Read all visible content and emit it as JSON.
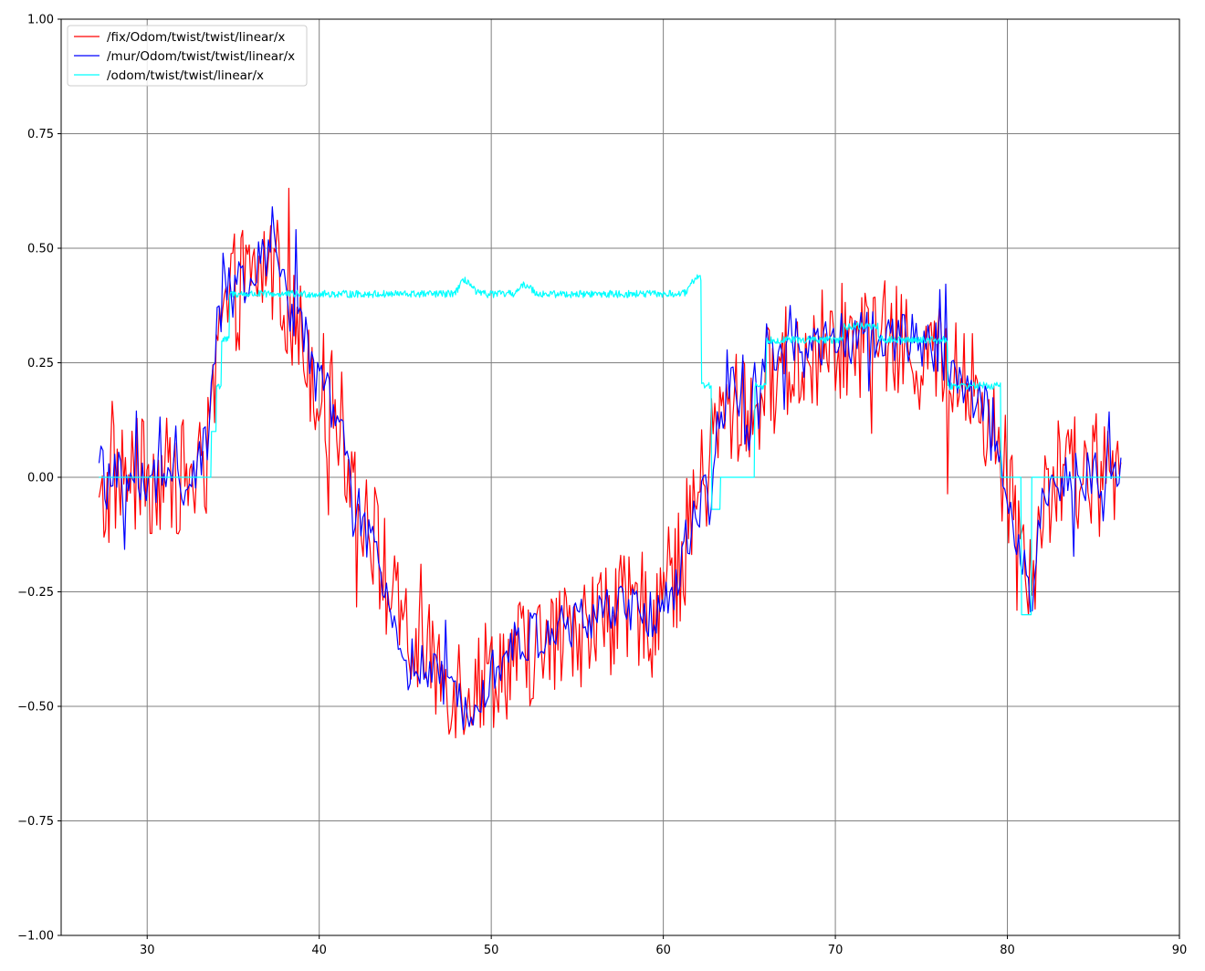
{
  "chart_data": {
    "type": "line",
    "xlim": [
      25,
      90
    ],
    "ylim": [
      -1.0,
      1.0
    ],
    "grid": true,
    "legend_position": "top-left",
    "xticks": [
      30,
      40,
      50,
      60,
      70,
      80,
      90
    ],
    "xtick_labels": [
      "30",
      "40",
      "50",
      "60",
      "70",
      "80",
      "90"
    ],
    "yticks": [
      -1.0,
      -0.75,
      -0.5,
      -0.25,
      0.0,
      0.25,
      0.5,
      0.75,
      1.0
    ],
    "ytick_labels": [
      "−1.00",
      "−0.75",
      "−0.50",
      "−0.25",
      "0.00",
      "0.25",
      "0.50",
      "0.75",
      "1.00"
    ],
    "series": [
      {
        "name": "/fix/Odom/twist/twist/linear/x",
        "color": "#ff0000",
        "anchors_x": [
          27.2,
          28,
          29,
          30,
          31,
          32,
          33,
          33.6,
          34.2,
          35,
          36,
          37,
          37.5,
          38,
          39,
          40,
          41,
          42,
          43,
          44,
          45,
          46,
          47,
          48,
          49,
          50,
          51,
          52,
          53,
          54,
          55,
          56,
          57,
          58,
          59,
          60,
          61,
          61.8,
          62.5,
          63,
          64,
          65,
          66,
          67,
          68,
          69,
          70,
          71,
          72,
          73,
          74,
          75,
          76,
          77,
          78,
          79,
          79.7,
          80.5,
          81,
          81.5,
          82,
          83,
          84,
          85,
          86,
          86.6
        ],
        "anchors_y": [
          -0.1,
          0.0,
          0.0,
          0.0,
          0.0,
          0.0,
          0.0,
          0.05,
          0.3,
          0.4,
          0.42,
          0.47,
          0.45,
          0.38,
          0.3,
          0.2,
          0.15,
          0.0,
          -0.1,
          -0.25,
          -0.35,
          -0.4,
          -0.42,
          -0.45,
          -0.45,
          -0.42,
          -0.4,
          -0.38,
          -0.38,
          -0.36,
          -0.33,
          -0.32,
          -0.3,
          -0.3,
          -0.28,
          -0.25,
          -0.2,
          -0.05,
          0.0,
          0.1,
          0.15,
          0.15,
          0.2,
          0.25,
          0.25,
          0.28,
          0.3,
          0.3,
          0.3,
          0.3,
          0.28,
          0.27,
          0.25,
          0.22,
          0.18,
          0.12,
          0.0,
          -0.05,
          -0.15,
          -0.2,
          -0.05,
          0.0,
          0.0,
          0.0,
          0.0,
          0.0
        ],
        "noise_amp": 0.13,
        "num_points": 620
      },
      {
        "name": "/mur/Odom/twist/twist/linear/x",
        "color": "#0000ff",
        "anchors_x": [
          27.2,
          27.6,
          28,
          29,
          30,
          31,
          32,
          33,
          33.6,
          34.3,
          35,
          36,
          37,
          37.3,
          38,
          39,
          40,
          41,
          42,
          43,
          44,
          45,
          46,
          47,
          48,
          49,
          50,
          51,
          52,
          53,
          54,
          55,
          56,
          57,
          58,
          59,
          60,
          61,
          62,
          62.7,
          63.3,
          64,
          65,
          65.3,
          66,
          67,
          68,
          69,
          70,
          71,
          72,
          73,
          74,
          75,
          76,
          77,
          78,
          79,
          79.6,
          80,
          81,
          81.3,
          82,
          83,
          84,
          85,
          86,
          86.6
        ],
        "anchors_y": [
          0.08,
          -0.05,
          0.0,
          0.0,
          -0.02,
          0.0,
          0.0,
          0.02,
          0.08,
          0.5,
          0.38,
          0.42,
          0.5,
          0.55,
          0.4,
          0.32,
          0.2,
          0.15,
          -0.05,
          -0.15,
          -0.28,
          -0.38,
          -0.42,
          -0.45,
          -0.5,
          -0.48,
          -0.42,
          -0.38,
          -0.35,
          -0.35,
          -0.33,
          -0.32,
          -0.3,
          -0.28,
          -0.3,
          -0.3,
          -0.28,
          -0.22,
          -0.05,
          -0.05,
          0.15,
          0.2,
          0.1,
          0.2,
          0.28,
          0.28,
          0.25,
          0.28,
          0.3,
          0.3,
          0.32,
          0.3,
          0.3,
          0.3,
          0.28,
          0.22,
          0.18,
          0.15,
          0.05,
          -0.05,
          -0.2,
          -0.3,
          -0.05,
          0.0,
          0.0,
          0.0,
          0.0,
          0.0
        ],
        "noise_amp": 0.06,
        "num_points": 520
      },
      {
        "name": "/odom/twist/twist/linear/x",
        "color": "#00ffff",
        "steps_x": [
          27.2,
          33.7,
          34.0,
          34.3,
          34.8,
          62.2,
          62.8,
          63.3,
          65.3,
          65.6,
          66.0,
          70.5,
          72.5,
          76.5,
          79.6,
          80.8,
          81.4,
          86.6
        ],
        "steps_y": [
          0.0,
          0.1,
          0.2,
          0.3,
          0.4,
          0.2,
          -0.07,
          0.0,
          0.2,
          0.2,
          0.3,
          0.33,
          0.3,
          0.2,
          0.0,
          -0.3,
          0.0,
          0.0
        ],
        "bumps": [
          {
            "x": 48.5,
            "y": 0.43
          },
          {
            "x": 52.0,
            "y": 0.42
          },
          {
            "x": 62.0,
            "y": 0.44
          },
          {
            "x": 75.5,
            "y": 0.33
          }
        ],
        "noise_amp": 0.008,
        "num_points": 1400
      }
    ]
  }
}
